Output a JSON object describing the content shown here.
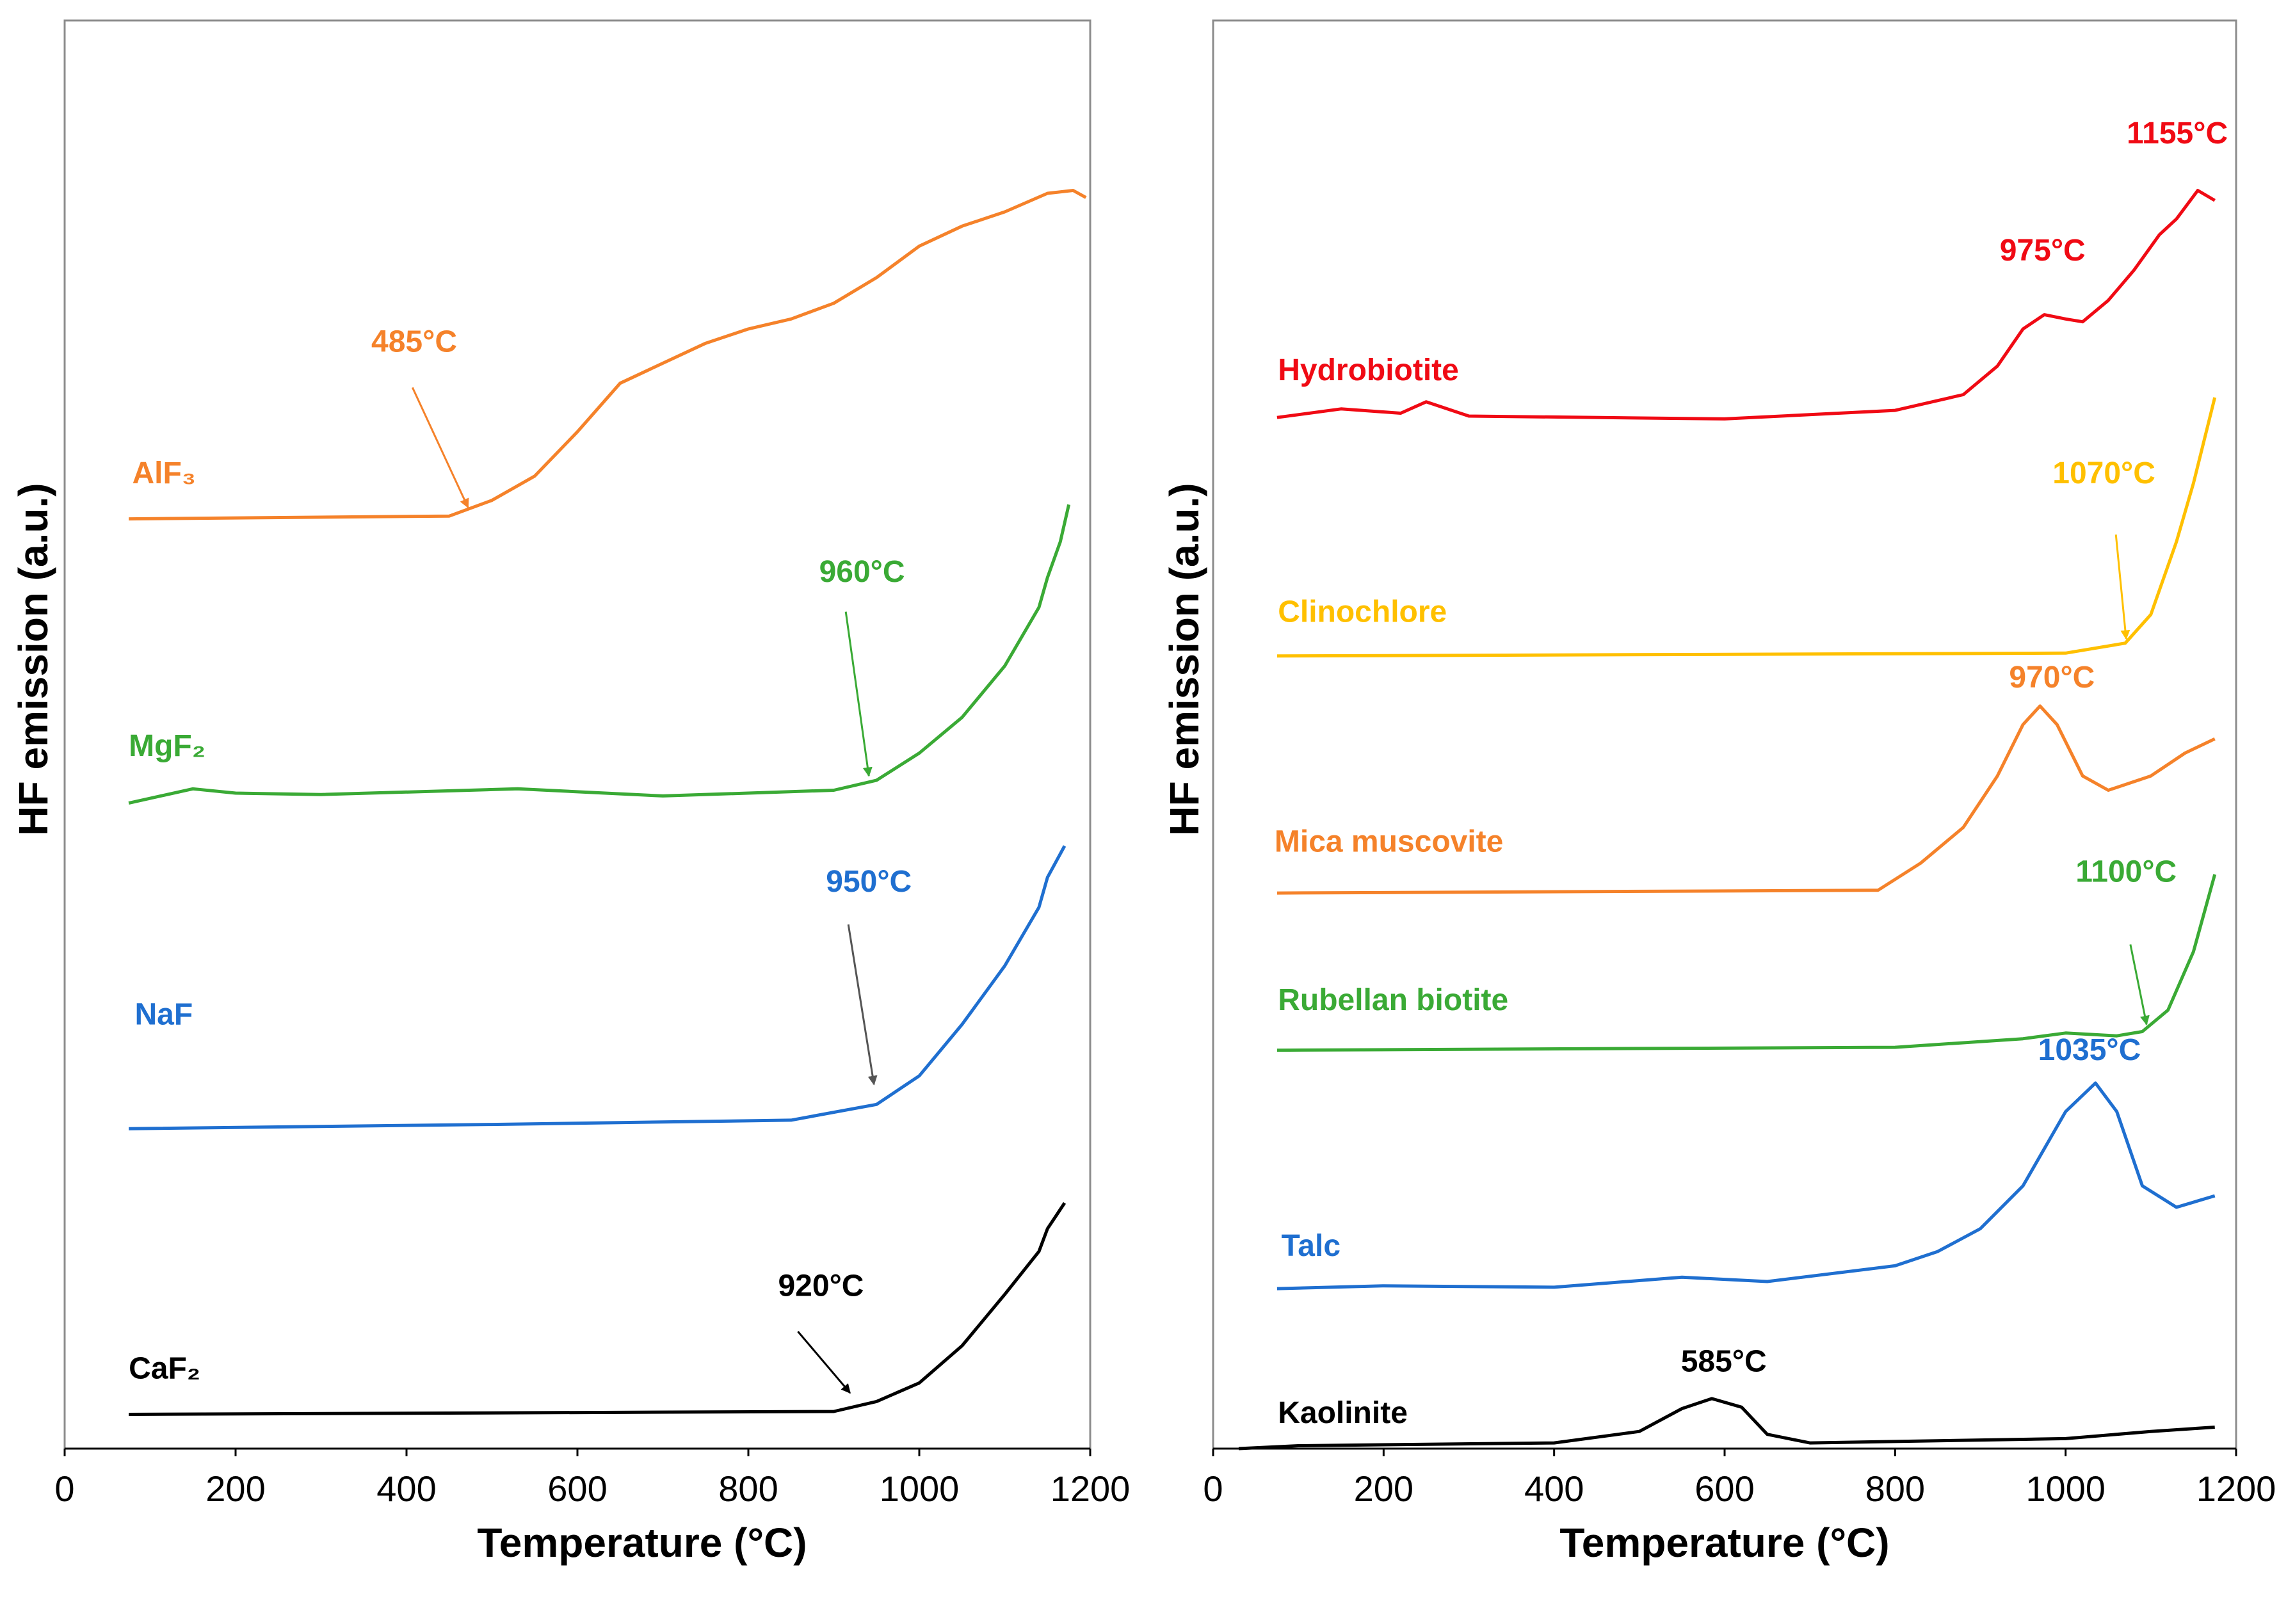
{
  "chart_data": [
    {
      "type": "line",
      "panel": "left",
      "xlabel": "Temperature (°C)",
      "ylabel": "HF emission (a.u.)",
      "xlim": [
        0,
        1200
      ],
      "ylim": [
        0,
        100
      ],
      "xticks": [
        0,
        200,
        400,
        600,
        800,
        1000,
        1200
      ],
      "grid": false,
      "series": [
        {
          "name": "AlF₃",
          "color": "#F5822A",
          "label_at": [
            79,
            67.6
          ],
          "x": [
            75,
            450,
            500,
            550,
            600,
            650,
            700,
            750,
            800,
            850,
            900,
            950,
            1000,
            1050,
            1100,
            1150,
            1180,
            1195
          ],
          "y": [
            65.1,
            65.3,
            66.4,
            68.1,
            71.2,
            74.6,
            76.0,
            77.4,
            78.4,
            79.1,
            80.2,
            82.0,
            84.2,
            85.6,
            86.6,
            87.9,
            88.1,
            87.6
          ]
        },
        {
          "name": "MgF₂",
          "color": "#3AAA35",
          "label_at": [
            75,
            48.5
          ],
          "x": [
            75,
            150,
            200,
            300,
            530,
            700,
            900,
            950,
            1000,
            1050,
            1100,
            1140,
            1150,
            1165,
            1175
          ],
          "y": [
            45.2,
            46.2,
            45.9,
            45.8,
            46.2,
            45.7,
            46.1,
            46.8,
            48.7,
            51.2,
            54.8,
            58.9,
            61.0,
            63.5,
            66.1
          ]
        },
        {
          "name": "NaF",
          "color": "#1F6FD0",
          "label_at": [
            82,
            29.7
          ],
          "x": [
            75,
            500,
            850,
            950,
            1000,
            1050,
            1100,
            1140,
            1150,
            1170
          ],
          "y": [
            22.4,
            22.7,
            23.0,
            24.1,
            26.1,
            29.7,
            33.8,
            37.9,
            40.0,
            42.2
          ]
        },
        {
          "name": "CaF₂",
          "color": "#000000",
          "label_at": [
            75,
            4.9
          ],
          "x": [
            75,
            900,
            950,
            1000,
            1050,
            1100,
            1140,
            1150,
            1170
          ],
          "y": [
            2.4,
            2.6,
            3.3,
            4.6,
            7.2,
            10.8,
            13.8,
            15.4,
            17.2
          ]
        }
      ],
      "annotations": [
        {
          "text": "485°C",
          "color": "#F5822A",
          "at": [
            409,
            76.8
          ],
          "arrow_from": [
            407,
            74.3
          ],
          "arrow_to": [
            472,
            65.9
          ]
        },
        {
          "text": "960°C",
          "color": "#3AAA35",
          "at": [
            933,
            60.7
          ],
          "arrow_from": [
            914,
            58.6
          ],
          "arrow_to": [
            941,
            47.1
          ]
        },
        {
          "text": "950°C",
          "color": "#1F6FD0",
          "arrow_color": "#555555",
          "at": [
            941,
            39.0
          ],
          "arrow_from": [
            917,
            36.7
          ],
          "arrow_to": [
            947,
            25.5
          ]
        },
        {
          "text": "920°C",
          "color": "#000000",
          "at": [
            885,
            10.7
          ],
          "arrow_from": [
            858,
            8.2
          ],
          "arrow_to": [
            919,
            3.9
          ]
        }
      ]
    },
    {
      "type": "line",
      "panel": "right",
      "xlabel": "Temperature (°C)",
      "ylabel": "HF emission (a.u.)",
      "xlim": [
        0,
        1200
      ],
      "ylim": [
        0,
        100
      ],
      "xticks": [
        0,
        200,
        400,
        600,
        800,
        1000,
        1200
      ],
      "grid": false,
      "series": [
        {
          "name": "Hydrobiotite",
          "color": "#F00A14",
          "label_at": [
            76,
            74.8
          ],
          "x": [
            75,
            150,
            220,
            250,
            300,
            600,
            800,
            880,
            920,
            950,
            975,
            1000,
            1020,
            1050,
            1080,
            1110,
            1130,
            1155,
            1175
          ],
          "y": [
            72.2,
            72.8,
            72.5,
            73.3,
            72.3,
            72.1,
            72.7,
            73.8,
            75.8,
            78.4,
            79.4,
            79.1,
            78.9,
            80.4,
            82.5,
            85.0,
            86.1,
            88.1,
            87.4
          ]
        },
        {
          "name": "Clinochlore",
          "color": "#FFC000",
          "label_at": [
            76,
            57.9
          ],
          "x": [
            75,
            1000,
            1070,
            1100,
            1130,
            1150,
            1175
          ],
          "y": [
            55.5,
            55.7,
            56.4,
            58.4,
            63.5,
            67.6,
            73.6
          ]
        },
        {
          "name": "Mica muscovite",
          "color": "#F5822A",
          "label_at": [
            72,
            41.8
          ],
          "x": [
            75,
            780,
            830,
            880,
            920,
            950,
            970,
            990,
            1020,
            1050,
            1100,
            1140,
            1175
          ],
          "y": [
            38.9,
            39.1,
            41.0,
            43.5,
            47.1,
            50.7,
            52.0,
            50.7,
            47.1,
            46.1,
            47.1,
            48.7,
            49.7
          ]
        },
        {
          "name": "Rubellan biotite",
          "color": "#3AAA35",
          "label_at": [
            76,
            30.7
          ],
          "x": [
            75,
            800,
            950,
            1000,
            1060,
            1090,
            1120,
            1150,
            1175
          ],
          "y": [
            27.9,
            28.1,
            28.7,
            29.1,
            28.9,
            29.2,
            30.7,
            34.8,
            40.2
          ]
        },
        {
          "name": "Talc",
          "color": "#1F6FD0",
          "label_at": [
            80,
            13.5
          ],
          "x": [
            75,
            200,
            400,
            550,
            650,
            800,
            850,
            900,
            950,
            1000,
            1035,
            1060,
            1090,
            1130,
            1175
          ],
          "y": [
            11.2,
            11.4,
            11.3,
            12.0,
            11.7,
            12.8,
            13.8,
            15.4,
            18.4,
            23.6,
            25.6,
            23.6,
            18.4,
            16.9,
            17.7
          ]
        },
        {
          "name": "Kaolinite",
          "color": "#000000",
          "label_at": [
            76,
            1.8
          ],
          "x": [
            30,
            100,
            400,
            500,
            550,
            585,
            620,
            650,
            700,
            1000,
            1100,
            1175
          ],
          "y": [
            0.0,
            0.2,
            0.4,
            1.2,
            2.8,
            3.5,
            2.9,
            1.0,
            0.4,
            0.7,
            1.2,
            1.5
          ]
        }
      ],
      "annotations": [
        {
          "text": "1155°C",
          "color": "#F00A14",
          "at": [
            1131,
            91.4
          ]
        },
        {
          "text": "975°C",
          "color": "#F00A14",
          "at": [
            973,
            83.2
          ]
        },
        {
          "text": "1070°C",
          "color": "#FFC000",
          "at": [
            1045,
            67.6
          ],
          "arrow_from": [
            1059,
            64.0
          ],
          "arrow_to": [
            1071,
            56.7
          ]
        },
        {
          "text": "970°C",
          "color": "#F5822A",
          "at": [
            984,
            53.3
          ]
        },
        {
          "text": "1100°C",
          "color": "#3AAA35",
          "at": [
            1071,
            39.7
          ],
          "arrow_from": [
            1076,
            35.3
          ],
          "arrow_to": [
            1095,
            29.7
          ]
        },
        {
          "text": "1035°C",
          "color": "#1F6FD0",
          "at": [
            1028,
            27.2
          ]
        },
        {
          "text": "585°C",
          "color": "#000000",
          "at": [
            599,
            5.4
          ]
        }
      ]
    }
  ]
}
